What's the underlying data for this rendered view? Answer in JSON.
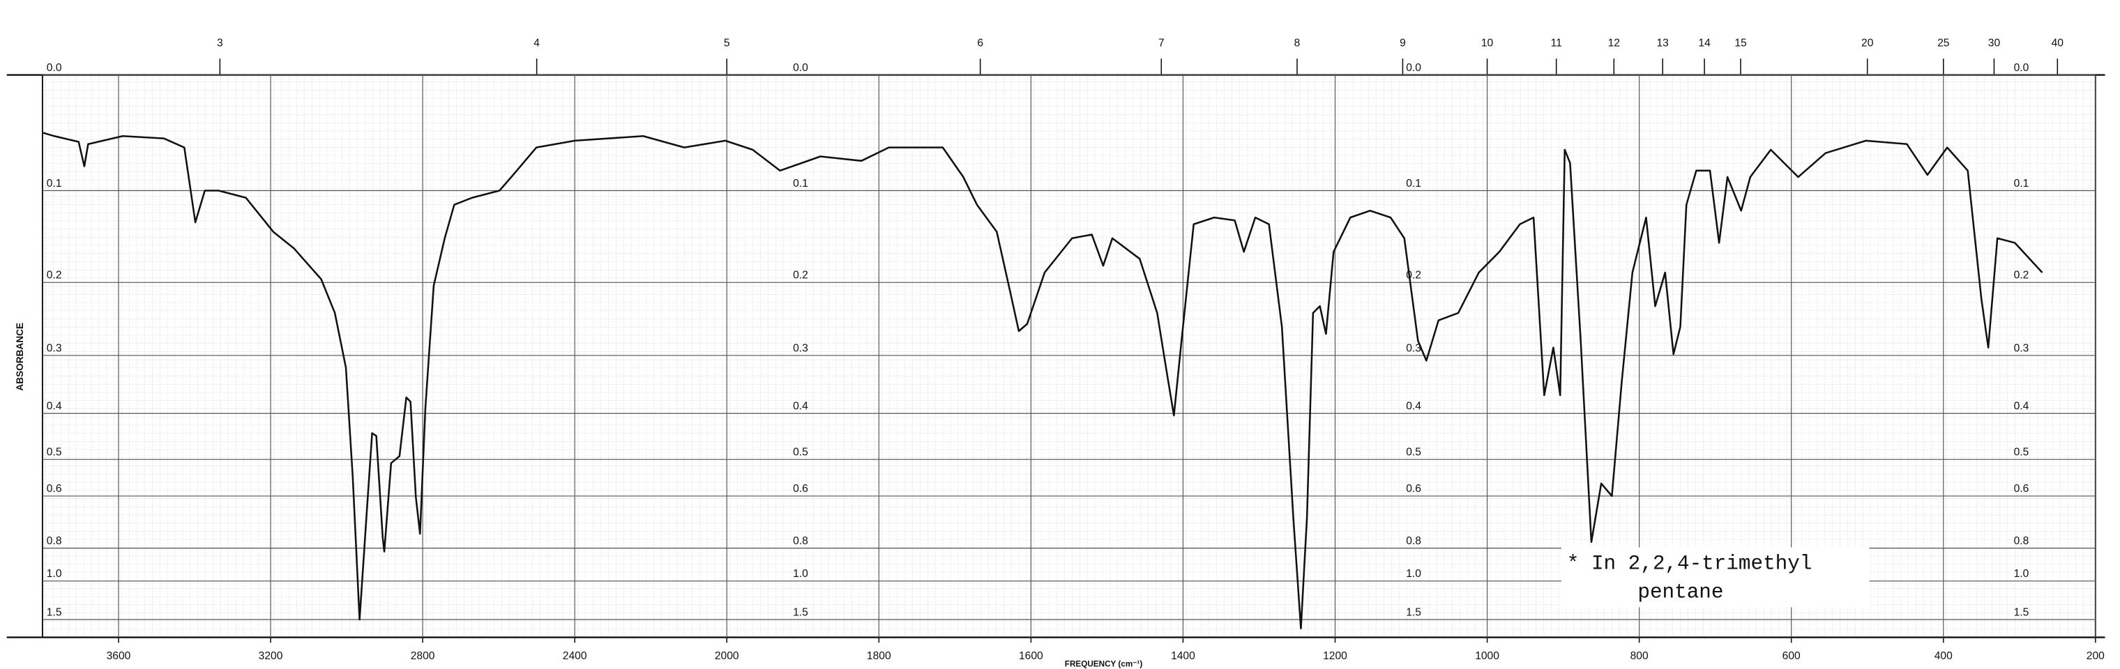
{
  "chart_data": {
    "type": "line",
    "ylabel": "ABSORBANCE",
    "xlabel": "FREQUENCY (cm⁻¹)",
    "annotation": [
      "* In 2,2,4-trimethyl",
      "pentane"
    ],
    "color": "#111111",
    "grid": true,
    "xlim": [
      3800,
      200
    ],
    "xticks": [
      3600,
      3200,
      2800,
      2400,
      2000,
      1800,
      1600,
      1400,
      1200,
      1000,
      800,
      600,
      400,
      200
    ],
    "x2ticks": [
      3,
      4,
      5,
      6,
      7,
      8,
      9,
      10,
      11,
      12,
      13,
      14,
      15,
      20,
      25,
      30,
      40
    ],
    "ylim": [
      0,
      1.5
    ],
    "yticks": [
      {
        "value": 0,
        "label": "0.0"
      },
      0.1,
      0.2,
      0.3,
      0.4,
      0.5,
      0.6,
      0.8,
      {
        "value": 1,
        "label": "1.0"
      },
      1.5
    ],
    "x": [
      3800,
      3769,
      3705,
      3690,
      3680,
      3589,
      3481,
      3427,
      3398,
      3373,
      3337,
      3265,
      3193,
      3139,
      3067,
      3031,
      3002,
      2984,
      2966,
      2948,
      2933,
      2922,
      2905,
      2901,
      2883,
      2861,
      2843,
      2832,
      2818,
      2807,
      2793,
      2771,
      2742,
      2717,
      2670,
      2598,
      2562,
      2501,
      2400,
      2220,
      2112,
      2004,
      1966,
      1930,
      1877,
      1823,
      1787,
      1716,
      1689,
      1671,
      1645,
      1627,
      1616,
      1605,
      1582,
      1546,
      1520,
      1505,
      1493,
      1457,
      1434,
      1421,
      1412,
      1402,
      1386,
      1359,
      1332,
      1320,
      1305,
      1287,
      1270,
      1255,
      1245,
      1237,
      1229,
      1220,
      1212,
      1202,
      1180,
      1154,
      1127,
      1109,
      1091,
      1080,
      1064,
      1038,
      1011,
      984,
      957,
      939,
      925,
      913,
      904,
      898,
      891,
      877,
      863,
      850,
      836,
      823,
      809,
      791,
      779,
      766,
      755,
      746,
      738,
      725,
      707,
      695,
      684,
      666,
      654,
      627,
      591,
      555,
      502,
      448,
      421,
      395,
      368,
      350,
      341,
      329,
      306,
      270
    ],
    "values": [
      0.047,
      0.05,
      0.055,
      0.077,
      0.057,
      0.05,
      0.052,
      0.06,
      0.132,
      0.1,
      0.1,
      0.107,
      0.142,
      0.16,
      0.196,
      0.239,
      0.319,
      0.544,
      1.5,
      0.671,
      0.44,
      0.446,
      0.753,
      0.817,
      0.509,
      0.492,
      0.37,
      0.378,
      0.603,
      0.735,
      0.391,
      0.204,
      0.149,
      0.114,
      0.107,
      0.1,
      0.085,
      0.06,
      0.054,
      0.05,
      0.06,
      0.054,
      0.062,
      0.081,
      0.068,
      0.072,
      0.06,
      0.06,
      0.087,
      0.114,
      0.142,
      0.213,
      0.264,
      0.254,
      0.188,
      0.149,
      0.145,
      0.18,
      0.149,
      0.172,
      0.239,
      0.33,
      0.404,
      0.278,
      0.134,
      0.127,
      0.13,
      0.164,
      0.127,
      0.134,
      0.258,
      0.671,
      1.8,
      0.671,
      0.239,
      0.23,
      0.268,
      0.164,
      0.127,
      0.12,
      0.127,
      0.149,
      0.278,
      0.308,
      0.249,
      0.239,
      0.188,
      0.164,
      0.134,
      0.127,
      0.366,
      0.288,
      0.366,
      0.062,
      0.074,
      0.278,
      0.771,
      0.563,
      0.6,
      0.342,
      0.188,
      0.127,
      0.23,
      0.188,
      0.298,
      0.258,
      0.114,
      0.081,
      0.081,
      0.154,
      0.087,
      0.12,
      0.087,
      0.062,
      0.087,
      0.065,
      0.054,
      0.057,
      0.085,
      0.06,
      0.081,
      0.221,
      0.288,
      0.149,
      0.154,
      0.188
    ]
  }
}
